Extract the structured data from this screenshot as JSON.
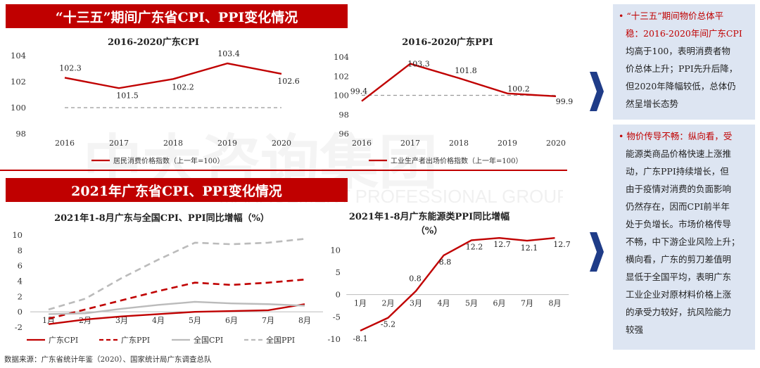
{
  "top_section": {
    "title": "“十三五”期间广东省CPI、PPI变化情况"
  },
  "bottom_section": {
    "title": "2021年广东省CPI、PPI变化情况"
  },
  "chart_data": [
    {
      "type": "line",
      "title": "2016-2020广东CPI",
      "categories": [
        "2016",
        "2017",
        "2018",
        "2019",
        "2020"
      ],
      "series": [
        {
          "name": "居民消费价格指数（上一年=100）",
          "values": [
            102.3,
            101.5,
            102.2,
            103.4,
            102.6
          ],
          "color": "#c00000"
        }
      ],
      "data_labels": [
        "102.3",
        "101.5",
        "102.2",
        "103.4",
        "102.6"
      ],
      "reference_line": 100,
      "yticks": [
        "98",
        "100",
        "102",
        "104"
      ],
      "ylim": [
        98,
        104
      ]
    },
    {
      "type": "line",
      "title": "2016-2020广东PPI",
      "categories": [
        "2016",
        "2017",
        "2018",
        "2019",
        "2020"
      ],
      "series": [
        {
          "name": "工业生产者出场价格指数（上一年=100）",
          "values": [
            99.4,
            103.3,
            101.8,
            100.2,
            99.9
          ],
          "color": "#c00000"
        }
      ],
      "data_labels": [
        "99.4",
        "103.3",
        "101.8",
        "100.2",
        "99.9"
      ],
      "reference_line": 100,
      "yticks": [
        "96",
        "98",
        "100",
        "102",
        "104"
      ],
      "ylim": [
        96,
        104
      ]
    },
    {
      "type": "line",
      "title": "2021年1-8月广东与全国CPI、PPI同比增幅（%）",
      "categories": [
        "1月",
        "2月",
        "3月",
        "4月",
        "5月",
        "6月",
        "7月",
        "8月"
      ],
      "series": [
        {
          "name": "广东CPI",
          "values": [
            -1.6,
            -1.0,
            -0.6,
            -0.3,
            0.0,
            0.1,
            0.2,
            1.0
          ],
          "color": "#c00000",
          "dash": "solid"
        },
        {
          "name": "广东PPI",
          "values": [
            -0.9,
            0.3,
            1.5,
            2.7,
            3.8,
            3.5,
            3.8,
            4.2
          ],
          "color": "#c00000",
          "dash": "dashed"
        },
        {
          "name": "全国CPI",
          "values": [
            -0.3,
            -0.2,
            0.4,
            0.9,
            1.3,
            1.1,
            1.0,
            0.8
          ],
          "color": "#bbbbbb",
          "dash": "solid"
        },
        {
          "name": "全国PPI",
          "values": [
            0.3,
            1.7,
            4.4,
            6.8,
            9.0,
            8.8,
            9.0,
            9.5
          ],
          "color": "#bbbbbb",
          "dash": "dashed"
        }
      ],
      "yticks": [
        "-2",
        "0",
        "2",
        "4",
        "6",
        "8",
        "10"
      ],
      "ylim": [
        -2,
        10
      ]
    },
    {
      "type": "line",
      "title_line1": "2021年1-8月广东能源类PPI同比增幅",
      "title_line2": "（%）",
      "categories": [
        "1月",
        "2月",
        "3月",
        "4月",
        "5月",
        "6月",
        "7月",
        "8月"
      ],
      "series": [
        {
          "name": "广东能源类PPI",
          "values": [
            -8.1,
            -5.2,
            0.8,
            8.8,
            12.2,
            12.7,
            12.1,
            12.7
          ],
          "color": "#c00000"
        }
      ],
      "data_labels": [
        "-8.1",
        "-5.2",
        "0.8",
        "8.8",
        "12.2",
        "12.7",
        "12.1",
        "12.7"
      ],
      "yticks": [
        "-10",
        "-5",
        "0",
        "5",
        "10"
      ],
      "ylim": [
        -10,
        14
      ]
    }
  ],
  "panel1": {
    "bullet": "•",
    "lines": [
      "“十三五”期间物价总体平",
      "稳：2016-2020年间广东CPI",
      "均高于100，表明消费者物",
      "价总体上升；PPI先升后降，",
      "但2020年降幅较低，总体仍",
      "然呈增长态势"
    ],
    "highlight_lines": 2
  },
  "panel2": {
    "bullet": "•",
    "lines": [
      "物价传导不畅：纵向看，受",
      "能源类商品价格快速上涨推",
      "动，广东PPI持续增长，但",
      "由于疫情对消费的负面影响",
      "仍然存在，因而CPI前半年",
      "处于负增长。市场价格传导",
      "不畅，中下游企业风险上升；",
      "横向看，广东的剪刀差值明",
      "显低于全国平均，表明广东",
      "工业企业对原材料价格上涨",
      "的承受力较好，抗风险能力",
      "较强"
    ],
    "highlight_lines": 1
  },
  "footer": {
    "source": "数据来源：广东省统计年鉴（2020）、国家统计局广东调查总队"
  },
  "watermark": {
    "main": "中大咨询集团",
    "sub": "MANAGEMENT PROFESSIONAL GROUP"
  }
}
